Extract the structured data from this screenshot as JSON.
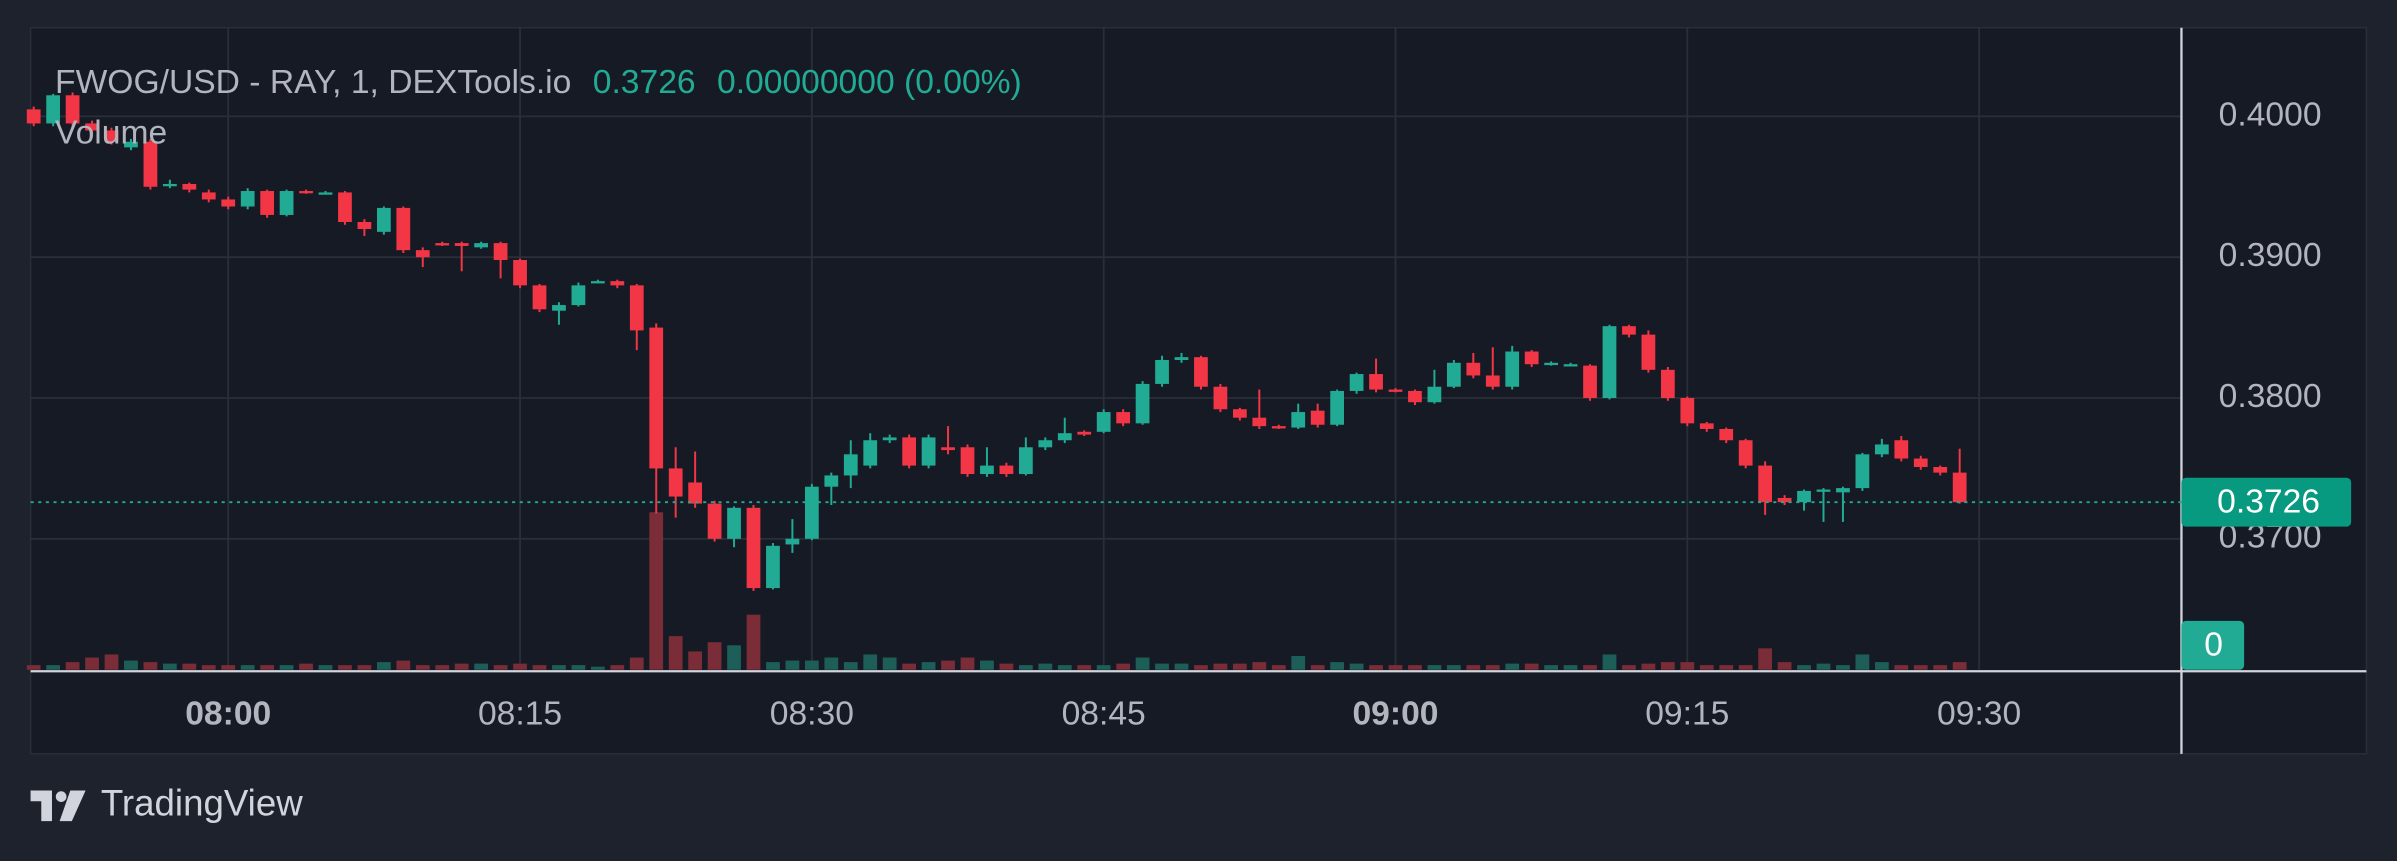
{
  "chart_data": {
    "type": "candlestick",
    "title": "FWOG/USD - RAY, 1, DEXTools.io",
    "header_price": "0.3726",
    "header_change": "0.00000000 (0.00%)",
    "volume_title": "Volume",
    "up_color": "#22ab94",
    "down_color": "#f23645",
    "volume_up_color": "#1d5f58",
    "volume_down_color": "#7a2c37",
    "grid": true,
    "ylim": [
      0.3607,
      0.4063
    ],
    "yticks": [
      {
        "value": 0.4,
        "label": "0.4000"
      },
      {
        "value": 0.39,
        "label": "0.3900"
      },
      {
        "value": 0.38,
        "label": "0.3800"
      },
      {
        "value": 0.37,
        "label": "0.3700"
      }
    ],
    "xlim": [
      -0.16,
      110.4
    ],
    "xticks": [
      {
        "value": 10,
        "label": "08:00",
        "bold": true
      },
      {
        "value": 25,
        "label": "08:15"
      },
      {
        "value": 40,
        "label": "08:30"
      },
      {
        "value": 55,
        "label": "08:45"
      },
      {
        "value": 70,
        "label": "09:00",
        "bold": true
      },
      {
        "value": 85,
        "label": "09:15"
      },
      {
        "value": 100,
        "label": "09:30"
      }
    ],
    "last_price": {
      "value": 0.3726,
      "label": "0.3726"
    },
    "volume_lim": [
      0,
      120
    ],
    "volume_ticks": [
      0
    ],
    "ohlc": [
      [
        0.4005,
        0.4007,
        0.3993,
        0.3995
      ],
      [
        0.3995,
        0.4016,
        0.3993,
        0.4015
      ],
      [
        0.4015,
        0.4017,
        0.3993,
        0.3995
      ],
      [
        0.3995,
        0.3997,
        0.3986,
        0.399
      ],
      [
        0.399,
        0.3992,
        0.398,
        0.3982
      ],
      [
        0.3978,
        0.3984,
        0.3976,
        0.3982
      ],
      [
        0.3982,
        0.3984,
        0.3948,
        0.395
      ],
      [
        0.3951,
        0.3955,
        0.3949,
        0.3952
      ],
      [
        0.3952,
        0.3953,
        0.3946,
        0.3948
      ],
      [
        0.3946,
        0.3948,
        0.3939,
        0.3941
      ],
      [
        0.3941,
        0.3943,
        0.3934,
        0.3936
      ],
      [
        0.3936,
        0.3949,
        0.3934,
        0.3947
      ],
      [
        0.3947,
        0.3948,
        0.3928,
        0.393
      ],
      [
        0.393,
        0.3948,
        0.3929,
        0.3947
      ],
      [
        0.3947,
        0.3948,
        0.3945,
        0.3946
      ],
      [
        0.3946,
        0.3947,
        0.3945,
        0.3946
      ],
      [
        0.3946,
        0.3947,
        0.3923,
        0.3925
      ],
      [
        0.3925,
        0.3927,
        0.3915,
        0.392
      ],
      [
        0.3918,
        0.3936,
        0.3916,
        0.3935
      ],
      [
        0.3935,
        0.3936,
        0.3903,
        0.3905
      ],
      [
        0.3905,
        0.3907,
        0.3893,
        0.39
      ],
      [
        0.391,
        0.3911,
        0.3908,
        0.3909
      ],
      [
        0.391,
        0.3911,
        0.389,
        0.3908
      ],
      [
        0.3907,
        0.3911,
        0.3906,
        0.391
      ],
      [
        0.391,
        0.3911,
        0.3885,
        0.3898
      ],
      [
        0.3898,
        0.3899,
        0.3878,
        0.388
      ],
      [
        0.388,
        0.3881,
        0.3861,
        0.3863
      ],
      [
        0.3862,
        0.3868,
        0.3852,
        0.3866
      ],
      [
        0.3866,
        0.3882,
        0.3865,
        0.388
      ],
      [
        0.3883,
        0.3884,
        0.3882,
        0.3883
      ],
      [
        0.3883,
        0.3884,
        0.3878,
        0.388
      ],
      [
        0.388,
        0.3881,
        0.3834,
        0.3848
      ],
      [
        0.385,
        0.3853,
        0.3718,
        0.375
      ],
      [
        0.375,
        0.3765,
        0.3715,
        0.373
      ],
      [
        0.374,
        0.3762,
        0.3722,
        0.3725
      ],
      [
        0.3725,
        0.3727,
        0.3698,
        0.37
      ],
      [
        0.37,
        0.3723,
        0.3694,
        0.3722
      ],
      [
        0.3722,
        0.3724,
        0.3663,
        0.3665
      ],
      [
        0.3665,
        0.3697,
        0.3664,
        0.3695
      ],
      [
        0.3696,
        0.3714,
        0.369,
        0.37
      ],
      [
        0.37,
        0.3739,
        0.3699,
        0.3737
      ],
      [
        0.3737,
        0.3747,
        0.3724,
        0.3745
      ],
      [
        0.3745,
        0.377,
        0.3736,
        0.376
      ],
      [
        0.3752,
        0.3775,
        0.375,
        0.377
      ],
      [
        0.377,
        0.3774,
        0.3768,
        0.3772
      ],
      [
        0.3772,
        0.3774,
        0.375,
        0.3752
      ],
      [
        0.3752,
        0.3774,
        0.375,
        0.3772
      ],
      [
        0.3765,
        0.378,
        0.376,
        0.3763
      ],
      [
        0.3765,
        0.3767,
        0.3744,
        0.3746
      ],
      [
        0.3746,
        0.3765,
        0.3744,
        0.3752
      ],
      [
        0.3752,
        0.3754,
        0.3744,
        0.3746
      ],
      [
        0.3746,
        0.3772,
        0.3745,
        0.3765
      ],
      [
        0.3765,
        0.3772,
        0.3763,
        0.377
      ],
      [
        0.377,
        0.3786,
        0.3768,
        0.3775
      ],
      [
        0.3776,
        0.3777,
        0.3773,
        0.3774
      ],
      [
        0.3776,
        0.3792,
        0.3775,
        0.379
      ],
      [
        0.379,
        0.3792,
        0.378,
        0.3782
      ],
      [
        0.3782,
        0.3812,
        0.3781,
        0.381
      ],
      [
        0.381,
        0.383,
        0.3808,
        0.3827
      ],
      [
        0.3827,
        0.3832,
        0.3825,
        0.3829
      ],
      [
        0.3829,
        0.383,
        0.3806,
        0.3808
      ],
      [
        0.3808,
        0.381,
        0.379,
        0.3792
      ],
      [
        0.3792,
        0.3793,
        0.3784,
        0.3786
      ],
      [
        0.3786,
        0.3806,
        0.3778,
        0.378
      ],
      [
        0.378,
        0.3781,
        0.3778,
        0.3779
      ],
      [
        0.3779,
        0.3796,
        0.3778,
        0.379
      ],
      [
        0.3791,
        0.3796,
        0.3779,
        0.3781
      ],
      [
        0.3781,
        0.3806,
        0.378,
        0.3805
      ],
      [
        0.3805,
        0.3818,
        0.3803,
        0.3817
      ],
      [
        0.3817,
        0.3828,
        0.3804,
        0.3806
      ],
      [
        0.3806,
        0.3807,
        0.3804,
        0.3805
      ],
      [
        0.3805,
        0.3806,
        0.3795,
        0.3797
      ],
      [
        0.3797,
        0.382,
        0.3796,
        0.3808
      ],
      [
        0.3808,
        0.3827,
        0.3807,
        0.3825
      ],
      [
        0.3825,
        0.3832,
        0.3814,
        0.3816
      ],
      [
        0.3816,
        0.3836,
        0.3806,
        0.3808
      ],
      [
        0.3808,
        0.3837,
        0.3806,
        0.3833
      ],
      [
        0.3833,
        0.3834,
        0.3822,
        0.3824
      ],
      [
        0.3824,
        0.3826,
        0.3823,
        0.3825
      ],
      [
        0.3824,
        0.3825,
        0.3823,
        0.3824
      ],
      [
        0.3823,
        0.3824,
        0.3798,
        0.38
      ],
      [
        0.38,
        0.3852,
        0.3799,
        0.3851
      ],
      [
        0.3851,
        0.3852,
        0.3843,
        0.3845
      ],
      [
        0.3845,
        0.3848,
        0.3818,
        0.382
      ],
      [
        0.382,
        0.3822,
        0.3798,
        0.38
      ],
      [
        0.38,
        0.3801,
        0.378,
        0.3782
      ],
      [
        0.3782,
        0.3783,
        0.3776,
        0.3778
      ],
      [
        0.3778,
        0.3779,
        0.3768,
        0.377
      ],
      [
        0.377,
        0.3771,
        0.375,
        0.3752
      ],
      [
        0.3752,
        0.3755,
        0.3717,
        0.3726
      ],
      [
        0.3729,
        0.3731,
        0.3724,
        0.3726
      ],
      [
        0.3726,
        0.3735,
        0.372,
        0.3734
      ],
      [
        0.3734,
        0.3736,
        0.3712,
        0.3735
      ],
      [
        0.3733,
        0.3737,
        0.3712,
        0.3736
      ],
      [
        0.3736,
        0.3761,
        0.3734,
        0.376
      ],
      [
        0.376,
        0.3771,
        0.3758,
        0.3767
      ],
      [
        0.377,
        0.3773,
        0.3755,
        0.3757
      ],
      [
        0.3757,
        0.3759,
        0.3749,
        0.3751
      ],
      [
        0.3751,
        0.3752,
        0.3745,
        0.3747
      ],
      [
        0.3747,
        0.3764,
        0.3725,
        0.3726
      ]
    ],
    "volume": [
      3,
      3,
      5,
      8,
      10,
      6,
      5,
      4,
      4,
      3,
      3,
      3,
      3,
      3,
      4,
      3,
      3,
      3,
      5,
      6,
      3,
      3,
      4,
      4,
      3,
      4,
      3,
      3,
      3,
      2,
      3,
      8,
      103,
      22,
      12,
      18,
      16,
      36,
      5,
      6,
      6,
      8,
      5,
      10,
      8,
      4,
      5,
      6,
      8,
      6,
      4,
      3,
      4,
      3,
      3,
      3,
      4,
      8,
      4,
      4,
      3,
      4,
      4,
      5,
      3,
      9,
      3,
      5,
      4,
      3,
      3,
      3,
      3,
      3,
      3,
      3,
      4,
      4,
      3,
      3,
      3,
      10,
      3,
      4,
      5,
      5,
      3,
      3,
      3,
      14,
      5,
      3,
      4,
      3,
      10,
      5,
      3,
      3,
      3,
      5
    ],
    "brand": "TradingView"
  }
}
